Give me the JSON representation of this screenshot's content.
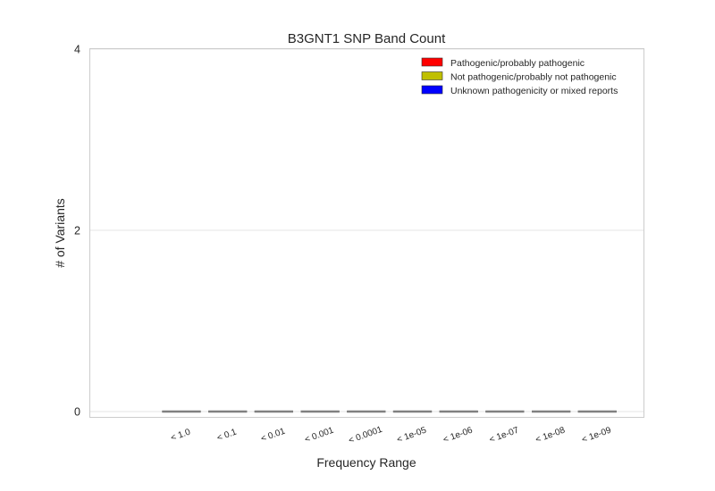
{
  "chart_data": {
    "type": "bar",
    "title": "B3GNT1 SNP Band Count",
    "xlabel": "Frequency Range",
    "ylabel": "# of Variants",
    "categories": [
      "< 1.0",
      "< 0.1",
      "< 0.01",
      "< 0.001",
      "< 0.0001",
      "< 1e-05",
      "< 1e-06",
      "< 1e-07",
      "< 1e-08",
      "< 1e-09"
    ],
    "series": [
      {
        "name": "Pathogenic/probably pathogenic",
        "color": "#ff0000",
        "values": [
          0,
          0,
          0,
          0,
          0,
          0,
          0,
          0,
          0,
          0
        ]
      },
      {
        "name": "Not pathogenic/probably not pathogenic",
        "color": "#bfbf00",
        "values": [
          0,
          0,
          0,
          0,
          0,
          0,
          0,
          0,
          0,
          0
        ]
      },
      {
        "name": "Unknown pathogenicity or mixed reports",
        "color": "#0000ff",
        "values": [
          0,
          0,
          0,
          0,
          0,
          0,
          0,
          0,
          0,
          0
        ]
      }
    ],
    "ylim": [
      0,
      4
    ],
    "yticks": [
      0,
      2,
      4
    ],
    "grid": true,
    "legend_position": "top-right",
    "bar_edge_color": "#808080"
  }
}
